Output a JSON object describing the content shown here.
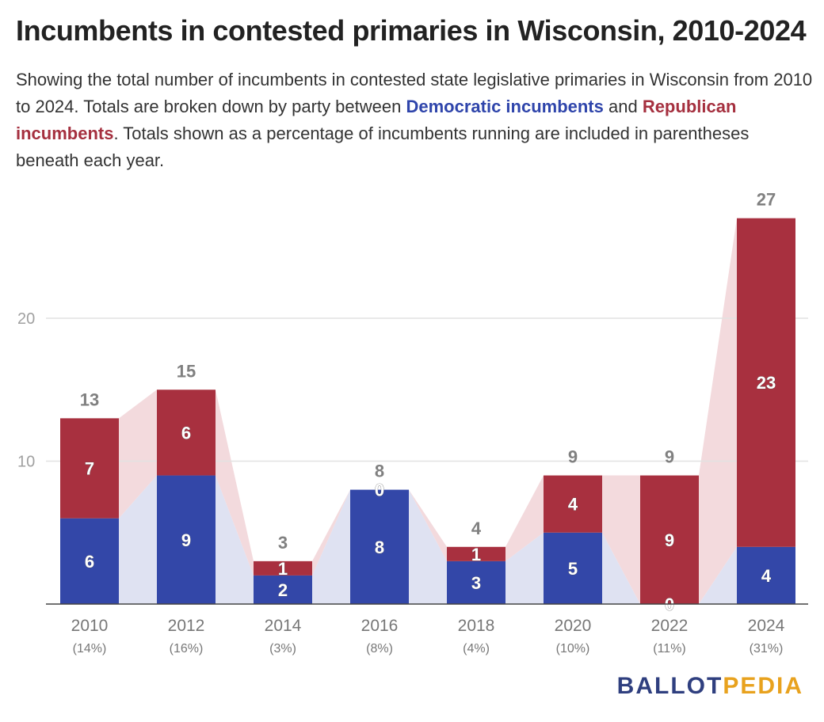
{
  "title": "Incumbents in contested primaries in Wisconsin, 2010-2024",
  "subtitle": {
    "part1": "Showing the total number of incumbents in contested state legislative primaries in Wisconsin from 2010 to 2024. Totals are broken down by party between ",
    "dem_label": "Democratic incumbents",
    "part2": " and ",
    "rep_label": "Republican incumbents",
    "part3": ". Totals shown as a percentage of incumbents running are included in parentheses beneath each year."
  },
  "logo": {
    "part1": "BALLOT",
    "part2": "PEDIA"
  },
  "colors": {
    "democratic": "#3347a8",
    "republican": "#a8303f",
    "dem_band": "#dfe2f2",
    "rep_band": "#f3dadd",
    "grid": "#e2e2e2",
    "axis": "#444444"
  },
  "chart_data": {
    "type": "bar",
    "stacked": true,
    "categories": [
      "2010",
      "2012",
      "2014",
      "2016",
      "2018",
      "2020",
      "2022",
      "2024"
    ],
    "percent_labels": [
      "(14%)",
      "(16%)",
      "(3%)",
      "(8%)",
      "(4%)",
      "(10%)",
      "(11%)",
      "(31%)"
    ],
    "series": [
      {
        "name": "Democratic incumbents",
        "values": [
          6,
          9,
          2,
          8,
          3,
          5,
          0,
          4
        ]
      },
      {
        "name": "Republican incumbents",
        "values": [
          7,
          6,
          1,
          0,
          1,
          4,
          9,
          23
        ]
      }
    ],
    "totals": [
      13,
      15,
      3,
      8,
      4,
      9,
      9,
      27
    ],
    "y_ticks": [
      "10",
      "20"
    ],
    "ylim": [
      0,
      27
    ],
    "grid": true,
    "xlabel": "",
    "ylabel": ""
  }
}
